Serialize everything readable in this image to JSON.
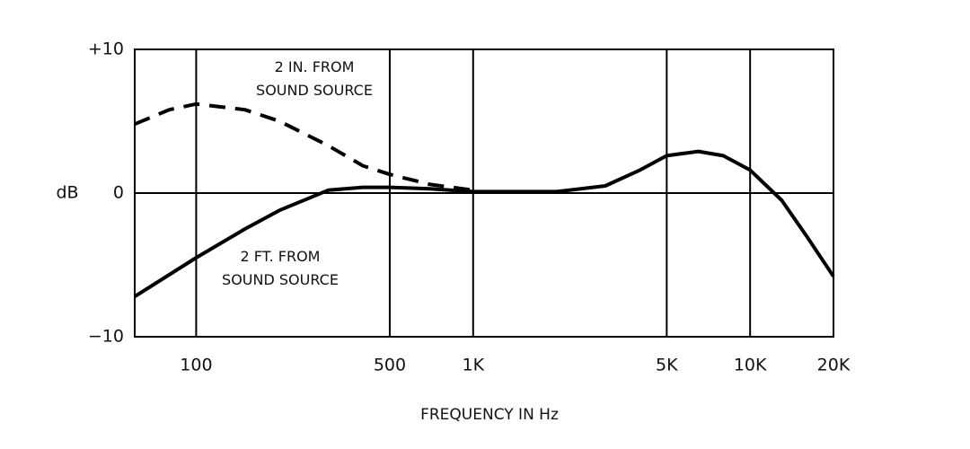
{
  "chart_data": {
    "type": "line",
    "y_label": "dB",
    "x_label": "FREQUENCY IN Hz",
    "log_x": true,
    "xlim": [
      60,
      20000
    ],
    "xticks": [
      100,
      500,
      {
        "value": 1000,
        "label": "1K"
      },
      {
        "value": 5000,
        "label": "5K"
      },
      {
        "value": 10000,
        "label": "10K"
      },
      {
        "value": 20000,
        "label": "20K"
      }
    ],
    "ylim": [
      -10,
      10
    ],
    "yticks": [
      {
        "value": -10,
        "label": "−10"
      },
      0,
      {
        "value": 10,
        "label": "+10"
      }
    ],
    "series": [
      {
        "name": "2 FT. FROM\nSOUND SOURCE",
        "color": "#000000",
        "dash": false,
        "x": [
          60,
          100,
          150,
          200,
          300,
          400,
          500,
          700,
          1000,
          2000,
          3000,
          4000,
          5000,
          6500,
          8000,
          10000,
          13000,
          16000,
          20000
        ],
        "values": [
          -7.2,
          -4.5,
          -2.5,
          -1.2,
          0.2,
          0.4,
          0.4,
          0.3,
          0.1,
          0.1,
          0.5,
          1.6,
          2.6,
          2.9,
          2.6,
          1.6,
          -0.5,
          -3,
          -5.8
        ]
      },
      {
        "name": "2 IN. FROM\nSOUND SOURCE",
        "color": "#000000",
        "dash": true,
        "x": [
          60,
          80,
          100,
          150,
          200,
          300,
          400,
          500,
          700,
          1000
        ],
        "values": [
          4.8,
          5.8,
          6.2,
          5.8,
          5.0,
          3.3,
          1.9,
          1.3,
          0.6,
          0.2
        ]
      }
    ]
  }
}
